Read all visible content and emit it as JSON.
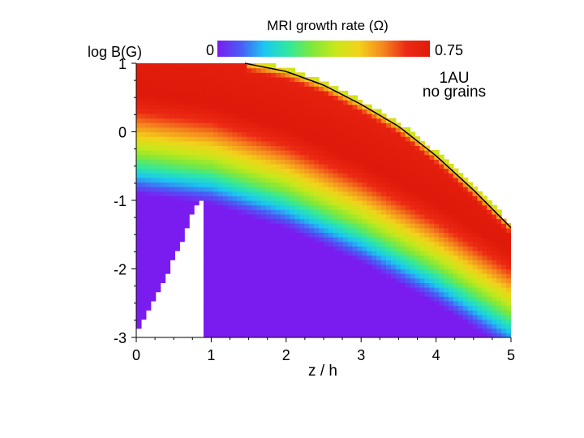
{
  "chart_data": {
    "type": "heatmap",
    "title": "MRI growth rate (Ω)",
    "xlabel": "z / h",
    "ylabel": "log B(G)",
    "xlim": [
      0,
      5
    ],
    "ylim": [
      -3,
      1
    ],
    "x_ticks": [
      "0",
      "1",
      "2",
      "3",
      "4",
      "5"
    ],
    "y_ticks": [
      "1",
      "0",
      "-1",
      "-2",
      "-3"
    ],
    "colorbar": {
      "min_label": "0",
      "max_label": "0.75",
      "min": 0,
      "max": 0.75,
      "colormap": [
        "#7a1cf0",
        "#4a5cf5",
        "#1ac8f0",
        "#30e8a0",
        "#7ee83c",
        "#c8e81a",
        "#f2d21a",
        "#f5881e",
        "#ec2a14",
        "#e01a0a"
      ]
    },
    "annotations": [
      "1AU",
      "no grains"
    ],
    "boundary_curve": {
      "x": [
        1.45,
        2.0,
        2.5,
        3.0,
        3.5,
        4.0,
        4.5,
        5.0
      ],
      "y": [
        1.0,
        0.88,
        0.68,
        0.4,
        0.08,
        -0.35,
        -0.85,
        -1.4
      ]
    },
    "lower_cutoff": {
      "x": [
        0.0,
        0.2,
        0.4,
        0.6,
        0.7,
        0.8,
        0.9
      ],
      "y": [
        -2.9,
        -2.5,
        -2.1,
        -1.6,
        -1.3,
        -1.1,
        -0.95
      ]
    },
    "ridge": {
      "description_values": "peak growth (~0.75) along the diagonal band",
      "x": [
        0.0,
        1.0,
        2.0,
        3.0,
        4.0,
        5.0
      ],
      "y": [
        0.55,
        0.4,
        0.05,
        -0.45,
        -1.05,
        -1.75
      ]
    }
  }
}
